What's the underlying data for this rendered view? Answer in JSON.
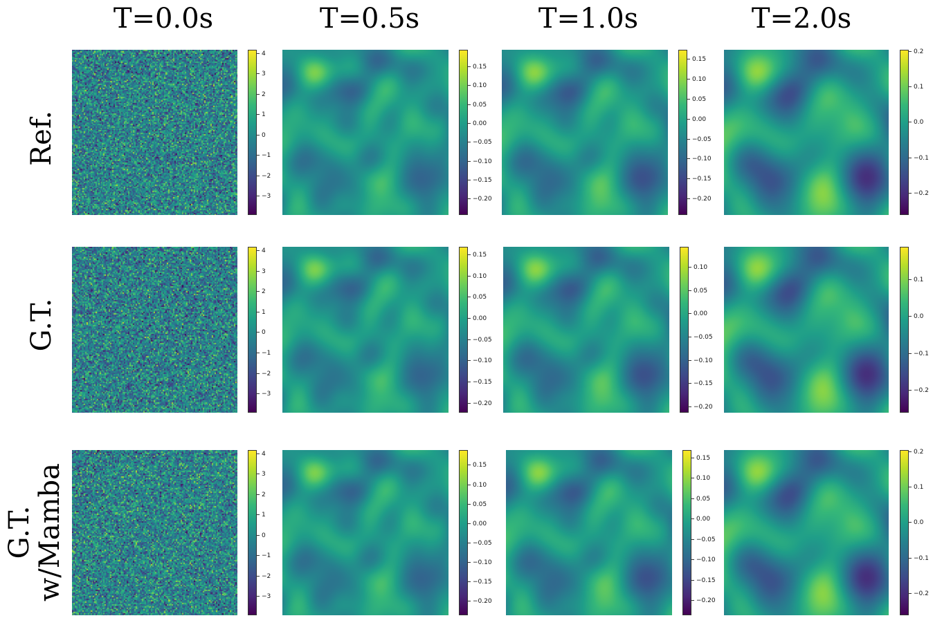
{
  "chart_data": {
    "type": "heatmap",
    "colormap": "viridis",
    "column_titles": [
      "T=0.0s",
      "T=0.5s",
      "T=1.0s",
      "T=2.0s"
    ],
    "row_labels": [
      "Ref.",
      "G.T.",
      "G.T.\nw/Mamba"
    ],
    "panels": [
      [
        {
          "range": [
            -3.9,
            4.2
          ],
          "ticks": [
            "4",
            "3",
            "2",
            "1",
            "0",
            "−1",
            "−2",
            "−3"
          ],
          "tick_values": [
            4,
            3,
            2,
            1,
            0,
            -1,
            -2,
            -3
          ]
        },
        {
          "range": [
            -0.242,
            0.196
          ],
          "ticks": [
            "0.15",
            "0.10",
            "0.05",
            "0.00",
            "−0.05",
            "−0.10",
            "−0.15",
            "−0.20"
          ],
          "tick_values": [
            0.15,
            0.1,
            0.05,
            0,
            -0.05,
            -0.1,
            -0.15,
            -0.2
          ]
        },
        {
          "range": [
            -0.24,
            0.175
          ],
          "ticks": [
            "0.15",
            "0.10",
            "0.05",
            "0.00",
            "−0.05",
            "−0.10",
            "−0.15",
            "−0.20"
          ],
          "tick_values": [
            0.15,
            0.1,
            0.05,
            0,
            -0.05,
            -0.1,
            -0.15,
            -0.2
          ]
        },
        {
          "range": [
            -0.26,
            0.205
          ],
          "ticks": [
            "0.2",
            "0.1",
            "0.0",
            "−0.1",
            "−0.2"
          ],
          "tick_values": [
            0.2,
            0.1,
            0,
            -0.1,
            -0.2
          ]
        }
      ],
      [
        {
          "range": [
            -3.9,
            4.2
          ],
          "ticks": [
            "4",
            "3",
            "2",
            "1",
            "0",
            "−1",
            "−2",
            "−3"
          ],
          "tick_values": [
            4,
            3,
            2,
            1,
            0,
            -1,
            -2,
            -3
          ]
        },
        {
          "range": [
            -0.222,
            0.17
          ],
          "ticks": [
            "0.15",
            "0.10",
            "0.05",
            "0.00",
            "−0.05",
            "−0.10",
            "−0.15",
            "−0.20"
          ],
          "tick_values": [
            0.15,
            0.1,
            0.05,
            0,
            -0.05,
            -0.1,
            -0.15,
            -0.2
          ]
        },
        {
          "range": [
            -0.212,
            0.145
          ],
          "ticks": [
            "0.10",
            "0.05",
            "0.00",
            "−0.05",
            "−0.10",
            "−0.15",
            "−0.20"
          ],
          "tick_values": [
            0.1,
            0.05,
            0,
            -0.05,
            -0.1,
            -0.15,
            -0.2
          ]
        },
        {
          "range": [
            -0.26,
            0.19
          ],
          "ticks": [
            "0.1",
            "0.0",
            "−0.1",
            "−0.2"
          ],
          "tick_values": [
            0.1,
            0,
            -0.1,
            -0.2
          ]
        }
      ],
      [
        {
          "range": [
            -3.9,
            4.2
          ],
          "ticks": [
            "4",
            "3",
            "2",
            "1",
            "0",
            "−1",
            "−2",
            "−3"
          ],
          "tick_values": [
            4,
            3,
            2,
            1,
            0,
            -1,
            -2,
            -3
          ]
        },
        {
          "range": [
            -0.235,
            0.19
          ],
          "ticks": [
            "0.15",
            "0.10",
            "0.05",
            "0.00",
            "−0.05",
            "−0.10",
            "−0.15",
            "−0.20"
          ],
          "tick_values": [
            0.15,
            0.1,
            0.05,
            0,
            -0.05,
            -0.1,
            -0.15,
            -0.2
          ]
        },
        {
          "range": [
            -0.235,
            0.17
          ],
          "ticks": [
            "0.15",
            "0.10",
            "0.05",
            "0.00",
            "−0.05",
            "−0.10",
            "−0.15",
            "−0.20"
          ],
          "tick_values": [
            0.15,
            0.1,
            0.05,
            0,
            -0.05,
            -0.1,
            -0.15,
            -0.2
          ]
        },
        {
          "range": [
            -0.26,
            0.205
          ],
          "ticks": [
            "0.2",
            "0.1",
            "0.0",
            "−0.1",
            "−0.2"
          ],
          "tick_values": [
            0.2,
            0.1,
            0,
            -0.1,
            -0.2
          ]
        }
      ]
    ]
  }
}
